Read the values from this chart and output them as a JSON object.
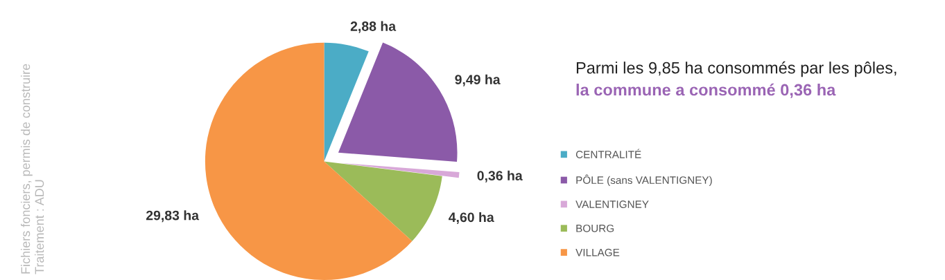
{
  "chart_data": {
    "type": "pie",
    "title": "Parmi les 9,85 ha consommés par les pôles,",
    "subtitle": "la commune a consommé 0,36 ha",
    "categories": [
      "CENTRALITÉ",
      "PÔLE (sans VALENTIGNEY)",
      "VALENTIGNEY",
      "BOURG",
      "VILLAGE"
    ],
    "values": [
      2.88,
      9.49,
      0.36,
      4.6,
      29.83
    ],
    "value_labels": [
      "2,88 ha",
      "9,49 ha",
      "0,36 ha",
      "4,60 ha",
      "29,83 ha"
    ],
    "colors": [
      "#4bacc6",
      "#8b5aa8",
      "#d8a8d8",
      "#9bbb59",
      "#f79646"
    ],
    "legend": "right",
    "annotations": [
      "Fichiers fonciers, permis de construire",
      "Traitement : ADU"
    ]
  }
}
